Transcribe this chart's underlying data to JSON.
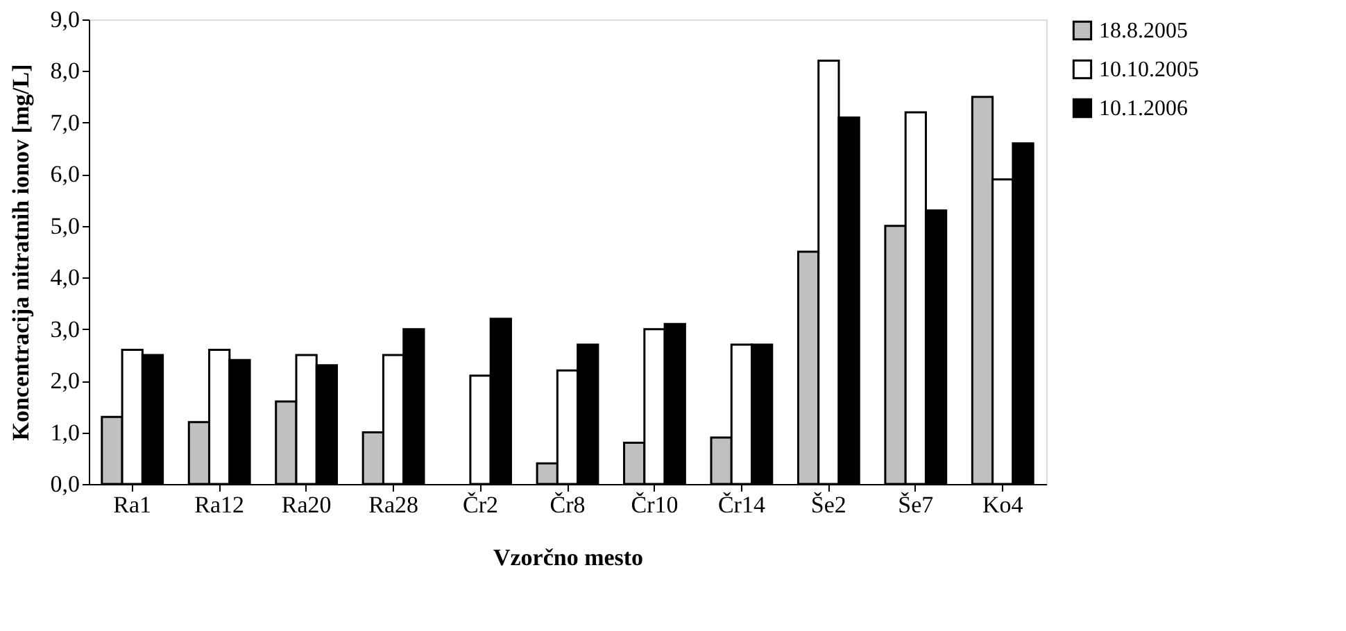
{
  "chart_data": {
    "type": "bar",
    "xlabel": "Vzorčno mesto",
    "ylabel": "Koncentracija nitratnih ionov [mg/L]",
    "categories": [
      "Ra1",
      "Ra12",
      "Ra20",
      "Ra28",
      "Čr2",
      "Čr8",
      "Čr10",
      "Čr14",
      "Še2",
      "Še7",
      "Ko4"
    ],
    "series": [
      {
        "name": "18.8.2005",
        "color": "#c0c0c0",
        "values": [
          1.3,
          1.2,
          1.6,
          1.0,
          null,
          0.4,
          0.8,
          0.9,
          4.5,
          5.0,
          7.5
        ]
      },
      {
        "name": "10.10.2005",
        "color": "#ffffff",
        "values": [
          2.6,
          2.6,
          2.5,
          2.5,
          2.1,
          2.2,
          3.0,
          2.7,
          8.2,
          7.2,
          5.9
        ]
      },
      {
        "name": "10.1.2006",
        "color": "#000000",
        "values": [
          2.5,
          2.4,
          2.3,
          3.0,
          3.2,
          2.7,
          3.1,
          2.7,
          7.1,
          5.3,
          6.6
        ]
      }
    ],
    "ylim": [
      0,
      9
    ],
    "yticks": [
      {
        "value": 0,
        "label": "0,0"
      },
      {
        "value": 1,
        "label": "1,0"
      },
      {
        "value": 2,
        "label": "2,0"
      },
      {
        "value": 3,
        "label": "3,0"
      },
      {
        "value": 4,
        "label": "4,0"
      },
      {
        "value": 5,
        "label": "5,0"
      },
      {
        "value": 6,
        "label": "6,0"
      },
      {
        "value": 7,
        "label": "7,0"
      },
      {
        "value": 8,
        "label": "8,0"
      },
      {
        "value": 9,
        "label": "9,0"
      }
    ],
    "grid": false,
    "legend": "right"
  }
}
